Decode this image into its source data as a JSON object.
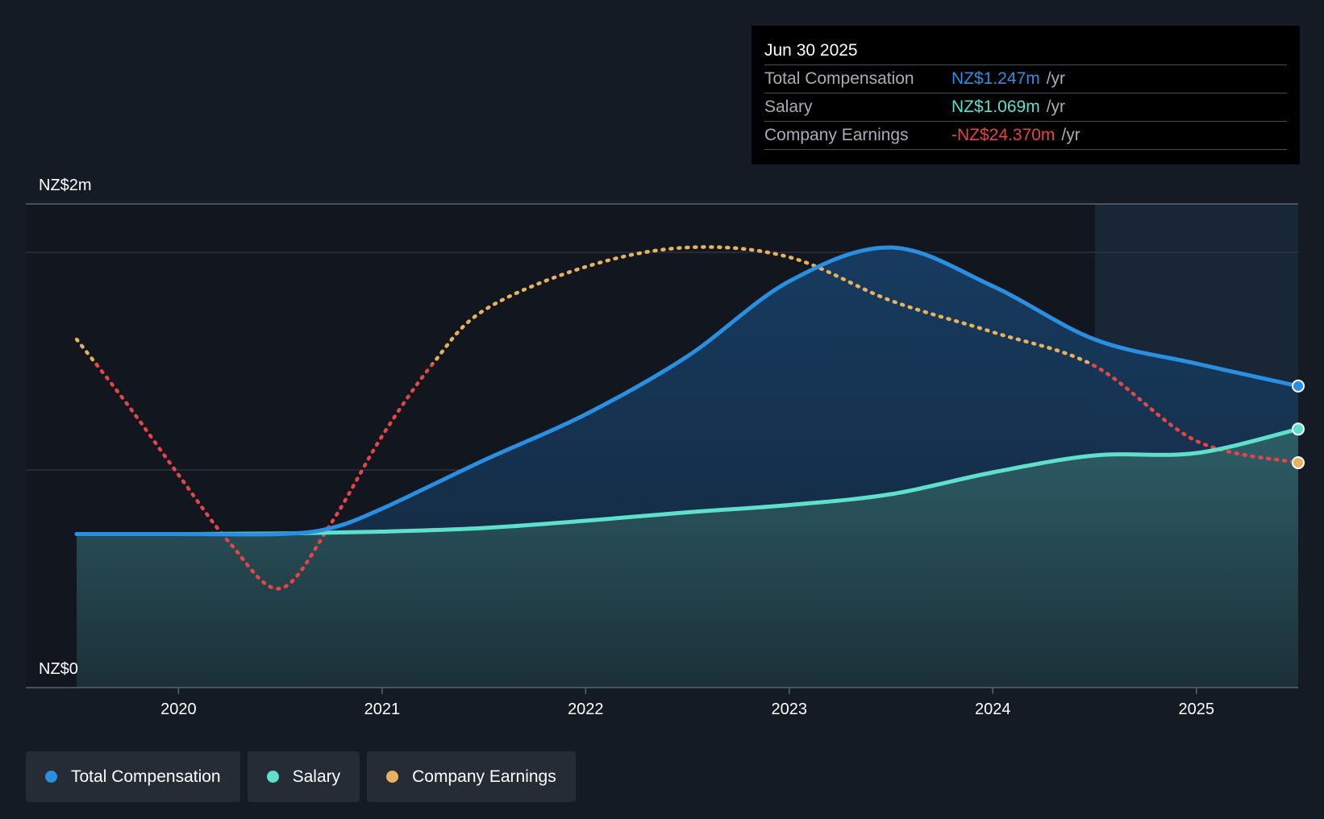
{
  "colors": {
    "total_compensation": "#2a8fe0",
    "salary": "#5ee0cc",
    "earnings_positive": "#e8b25c",
    "earnings_negative": "#e64545",
    "background": "#151b24"
  },
  "tooltip": {
    "date": "Jun 30 2025",
    "rows": [
      {
        "label": "Total Compensation",
        "value": "NZ$1.247m",
        "unit": "/yr",
        "color": "#2a8fe0"
      },
      {
        "label": "Salary",
        "value": "NZ$1.069m",
        "unit": "/yr",
        "color": "#5ee0cc"
      },
      {
        "label": "Company Earnings",
        "value": "-NZ$24.370m",
        "unit": "/yr",
        "color": "#e64545"
      }
    ]
  },
  "legend": {
    "items": [
      {
        "label": "Total Compensation",
        "color": "#2a8fe0"
      },
      {
        "label": "Salary",
        "color": "#5ee0cc"
      },
      {
        "label": "Company Earnings",
        "color": "#e8b25c"
      }
    ]
  },
  "chart_data": {
    "type": "line",
    "title": "",
    "xlabel": "",
    "ylabel": "",
    "ylim": [
      0,
      2.0
    ],
    "y_tick_labels": {
      "top": "NZ$2m",
      "bottom": "NZ$0"
    },
    "x_ticks": [
      2020,
      2021,
      2022,
      2023,
      2024,
      2025
    ],
    "xlim": [
      2019.25,
      2025.5
    ],
    "forecast_shade_start": 2024.5,
    "series": [
      {
        "name": "Total Compensation",
        "unit": "NZ$m",
        "points": [
          [
            2019.5,
            0.635
          ],
          [
            2020.0,
            0.635
          ],
          [
            2020.5,
            0.635
          ],
          [
            2020.75,
            0.66
          ],
          [
            2021.0,
            0.74
          ],
          [
            2021.5,
            0.94
          ],
          [
            2022.0,
            1.13
          ],
          [
            2022.5,
            1.37
          ],
          [
            2023.0,
            1.68
          ],
          [
            2023.5,
            1.82
          ],
          [
            2024.0,
            1.66
          ],
          [
            2024.5,
            1.44
          ],
          [
            2025.0,
            1.34
          ],
          [
            2025.5,
            1.247
          ]
        ]
      },
      {
        "name": "Salary",
        "unit": "NZ$m",
        "points": [
          [
            2019.5,
            0.635
          ],
          [
            2020.0,
            0.635
          ],
          [
            2020.5,
            0.637
          ],
          [
            2021.0,
            0.645
          ],
          [
            2021.5,
            0.66
          ],
          [
            2022.0,
            0.69
          ],
          [
            2022.5,
            0.725
          ],
          [
            2023.0,
            0.755
          ],
          [
            2023.5,
            0.8
          ],
          [
            2024.0,
            0.89
          ],
          [
            2024.5,
            0.96
          ],
          [
            2025.0,
            0.97
          ],
          [
            2025.5,
            1.069
          ]
        ]
      },
      {
        "name": "Company Earnings",
        "unit": "relative",
        "points": [
          [
            2019.5,
            1.44
          ],
          [
            2019.75,
            1.17
          ],
          [
            2020.0,
            0.88
          ],
          [
            2020.25,
            0.6
          ],
          [
            2020.5,
            0.41
          ],
          [
            2020.75,
            0.68
          ],
          [
            2021.0,
            1.04
          ],
          [
            2021.25,
            1.34
          ],
          [
            2021.5,
            1.56
          ],
          [
            2022.0,
            1.74
          ],
          [
            2022.5,
            1.82
          ],
          [
            2023.0,
            1.78
          ],
          [
            2023.5,
            1.6
          ],
          [
            2024.0,
            1.47
          ],
          [
            2024.5,
            1.33
          ],
          [
            2025.0,
            1.02
          ],
          [
            2025.5,
            0.93
          ]
        ]
      }
    ]
  }
}
